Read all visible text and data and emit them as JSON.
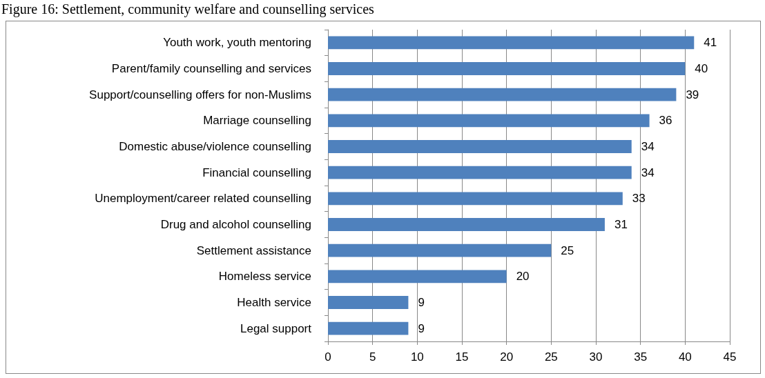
{
  "chart_data": {
    "type": "bar",
    "orientation": "horizontal",
    "title": "Figure 16: Settlement, community welfare and counselling services",
    "categories": [
      "Youth work, youth mentoring",
      "Parent/family counselling and services",
      "Support/counselling offers for non-Muslims",
      "Marriage counselling",
      "Domestic abuse/violence counselling",
      "Financial counselling",
      "Unemployment/career related counselling",
      "Drug and alcohol counselling",
      "Settlement assistance",
      "Homeless service",
      "Health service",
      "Legal support"
    ],
    "values": [
      41,
      40,
      39,
      36,
      34,
      34,
      33,
      31,
      25,
      20,
      9,
      9
    ],
    "color": "#4f81bd",
    "xlim": [
      0,
      45
    ],
    "xticks": [
      0,
      5,
      10,
      15,
      20,
      25,
      30,
      35,
      40,
      45
    ],
    "grid": "x",
    "data_labels": true
  }
}
